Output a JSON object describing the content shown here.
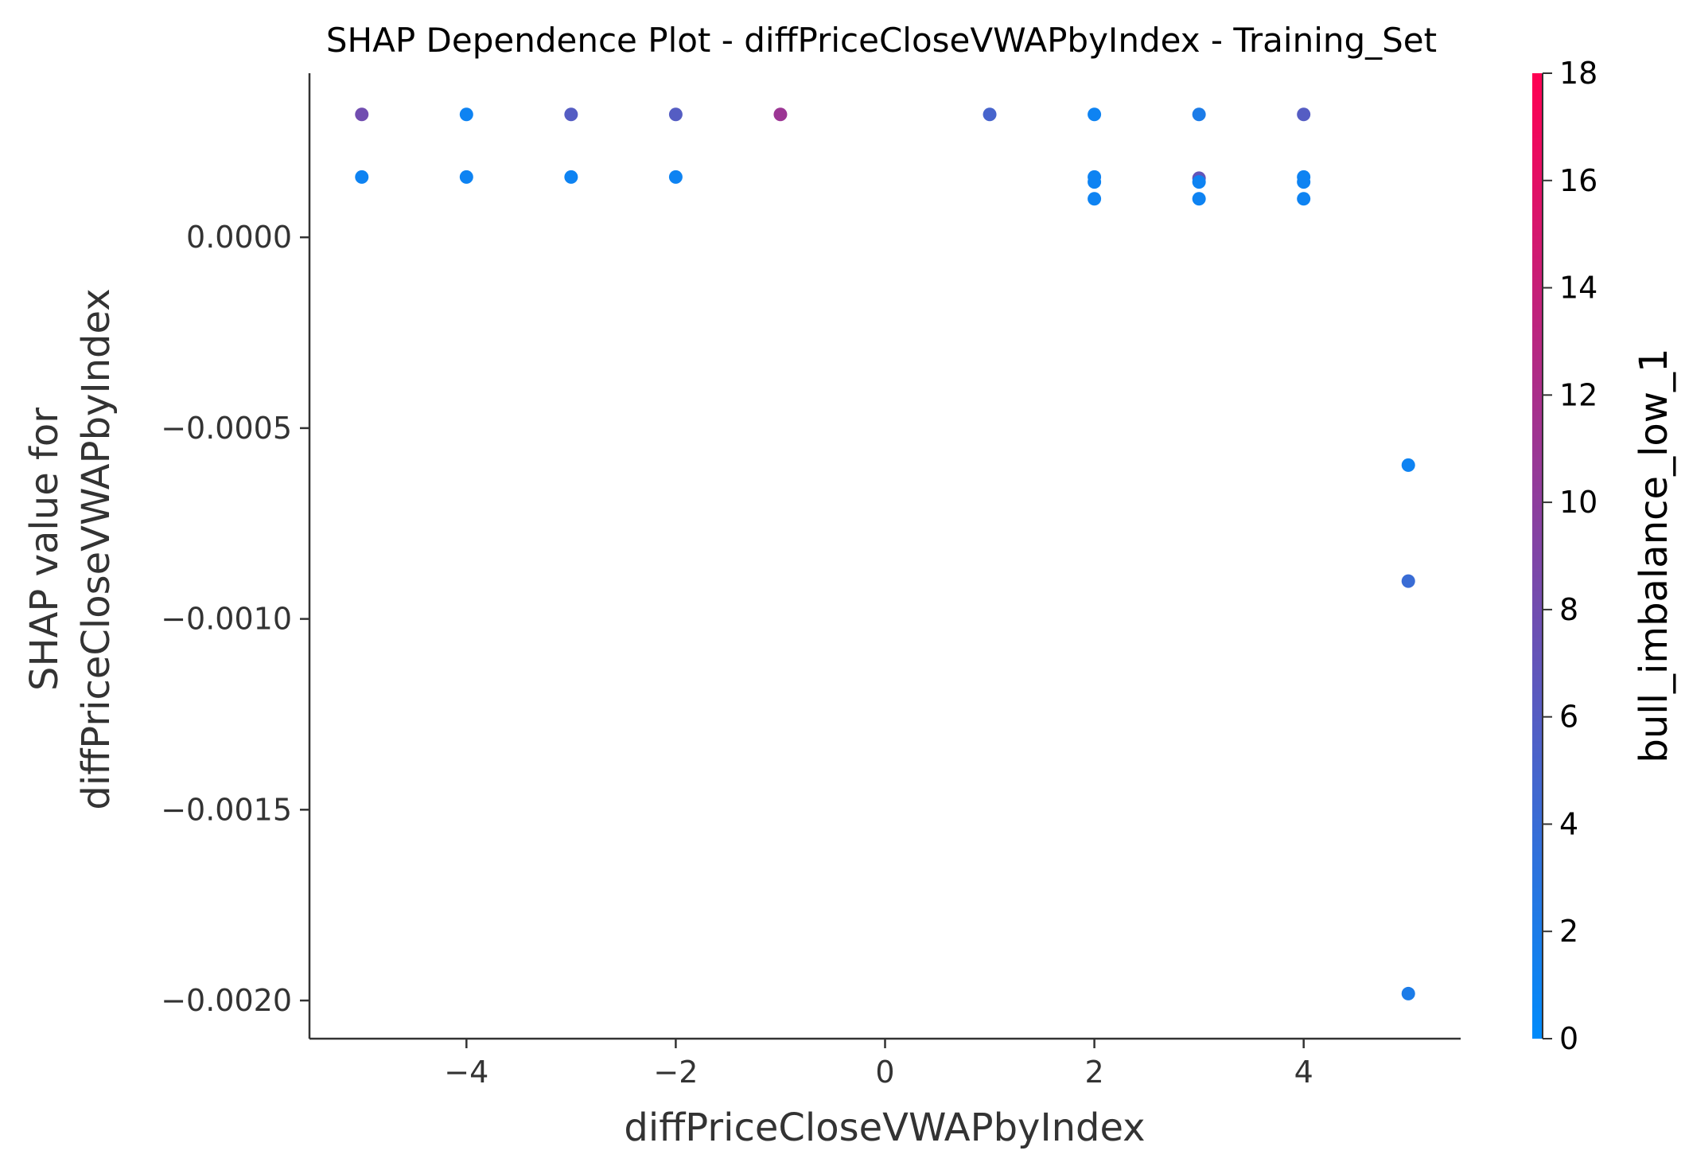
{
  "chart_data": {
    "type": "scatter",
    "title": "SHAP Dependence Plot - diffPriceCloseVWAPbyIndex - Training_Set",
    "xlabel": "diffPriceCloseVWAPbyIndex",
    "ylabel_line1": "SHAP value for",
    "ylabel_line2": "diffPriceCloseVWAPbyIndex",
    "colorbar_label": "bull_imbalance_low_1",
    "xlim": [
      -5.5,
      5.5
    ],
    "ylim": [
      -0.0021,
      0.00043
    ],
    "x_ticks": [
      -4,
      -2,
      0,
      2,
      4
    ],
    "x_tick_labels": [
      "−4",
      "−2",
      "0",
      "2",
      "4"
    ],
    "y_ticks": [
      0.0,
      -0.0005,
      -0.001,
      -0.0015,
      -0.002
    ],
    "y_tick_labels": [
      "0.0000",
      "−0.0005",
      "−0.0010",
      "−0.0015",
      "−0.0020"
    ],
    "colorbar_range": [
      0,
      18
    ],
    "colorbar_ticks": [
      0,
      2,
      4,
      6,
      8,
      10,
      12,
      14,
      16,
      18
    ],
    "colorbar_tick_labels": [
      "0",
      "2",
      "4",
      "6",
      "8",
      "10",
      "12",
      "14",
      "16",
      "18"
    ],
    "grid": false,
    "colormap": [
      "#008bfb",
      "#ff0052"
    ],
    "points": [
      {
        "x": -5,
        "y": 0.000322,
        "c": 8
      },
      {
        "x": -5,
        "y": 0.000158,
        "c": 1
      },
      {
        "x": -4,
        "y": 0.000322,
        "c": 1
      },
      {
        "x": -4,
        "y": 0.000158,
        "c": 1
      },
      {
        "x": -3,
        "y": 0.000322,
        "c": 6
      },
      {
        "x": -3,
        "y": 0.000158,
        "c": 1
      },
      {
        "x": -2,
        "y": 0.000322,
        "c": 6
      },
      {
        "x": -2,
        "y": 0.000158,
        "c": 1
      },
      {
        "x": -1,
        "y": 0.000322,
        "c": 11
      },
      {
        "x": 1,
        "y": 0.000322,
        "c": 5
      },
      {
        "x": 2,
        "y": 0.000322,
        "c": 1
      },
      {
        "x": 2,
        "y": 0.000158,
        "c": 1
      },
      {
        "x": 2,
        "y": 0.000145,
        "c": 1
      },
      {
        "x": 2,
        "y": 0.000101,
        "c": 1
      },
      {
        "x": 3,
        "y": 0.000322,
        "c": 2
      },
      {
        "x": 3,
        "y": 0.000155,
        "c": 7
      },
      {
        "x": 3,
        "y": 0.000145,
        "c": 1
      },
      {
        "x": 3,
        "y": 0.000101,
        "c": 1
      },
      {
        "x": 4,
        "y": 0.000322,
        "c": 6
      },
      {
        "x": 4,
        "y": 0.000158,
        "c": 1
      },
      {
        "x": 4,
        "y": 0.000145,
        "c": 1
      },
      {
        "x": 4,
        "y": 0.000101,
        "c": 1
      },
      {
        "x": 5,
        "y": -0.000597,
        "c": 1
      },
      {
        "x": 5,
        "y": -0.000901,
        "c": 4
      },
      {
        "x": 5,
        "y": -0.001982,
        "c": 2
      }
    ]
  }
}
